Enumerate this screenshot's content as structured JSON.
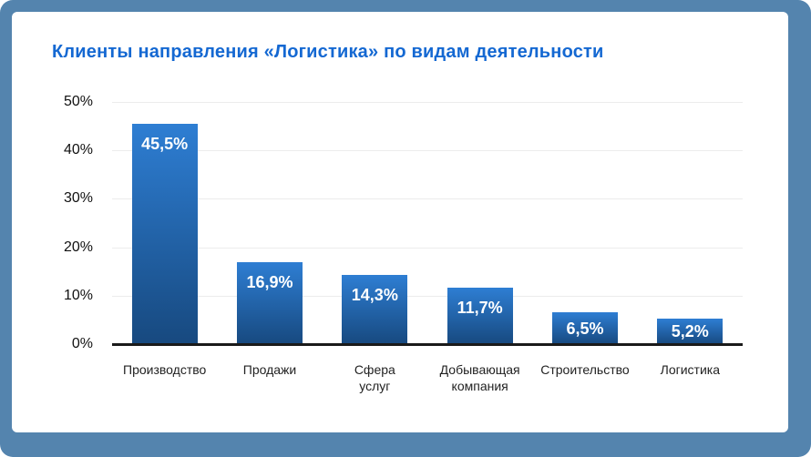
{
  "colors": {
    "page_background": "#5484ae",
    "card_background": "#ffffff",
    "title": "#1468d2",
    "bar_gradient_top": "#2e7ed3",
    "bar_gradient_bottom": "#17497f",
    "value_label": "#ffffff",
    "axis": "#1a1a1a",
    "gridline": "#ececec",
    "tick_label": "#111111",
    "category_label": "#222222"
  },
  "chart_data": {
    "type": "bar",
    "title": "Клиенты направления «Логистика» по видам деятельности",
    "categories": [
      "Производство",
      "Продажи",
      "Сфера\nуслуг",
      "Добывающая\nкомпания",
      "Строительство",
      "Логистика"
    ],
    "values": [
      45.5,
      16.9,
      14.3,
      11.7,
      6.5,
      5.2
    ],
    "value_labels": [
      "45,5%",
      "16,9%",
      "14,3%",
      "11,7%",
      "6,5%",
      "5,2%"
    ],
    "y_tick_values": [
      50,
      40,
      30,
      20,
      10,
      0
    ],
    "y_tick_labels": [
      "50%",
      "40%",
      "30%",
      "20%",
      "10%",
      "0%"
    ],
    "ylim": [
      0,
      50
    ],
    "grid": true,
    "legend": false,
    "decimal_separator": ","
  }
}
